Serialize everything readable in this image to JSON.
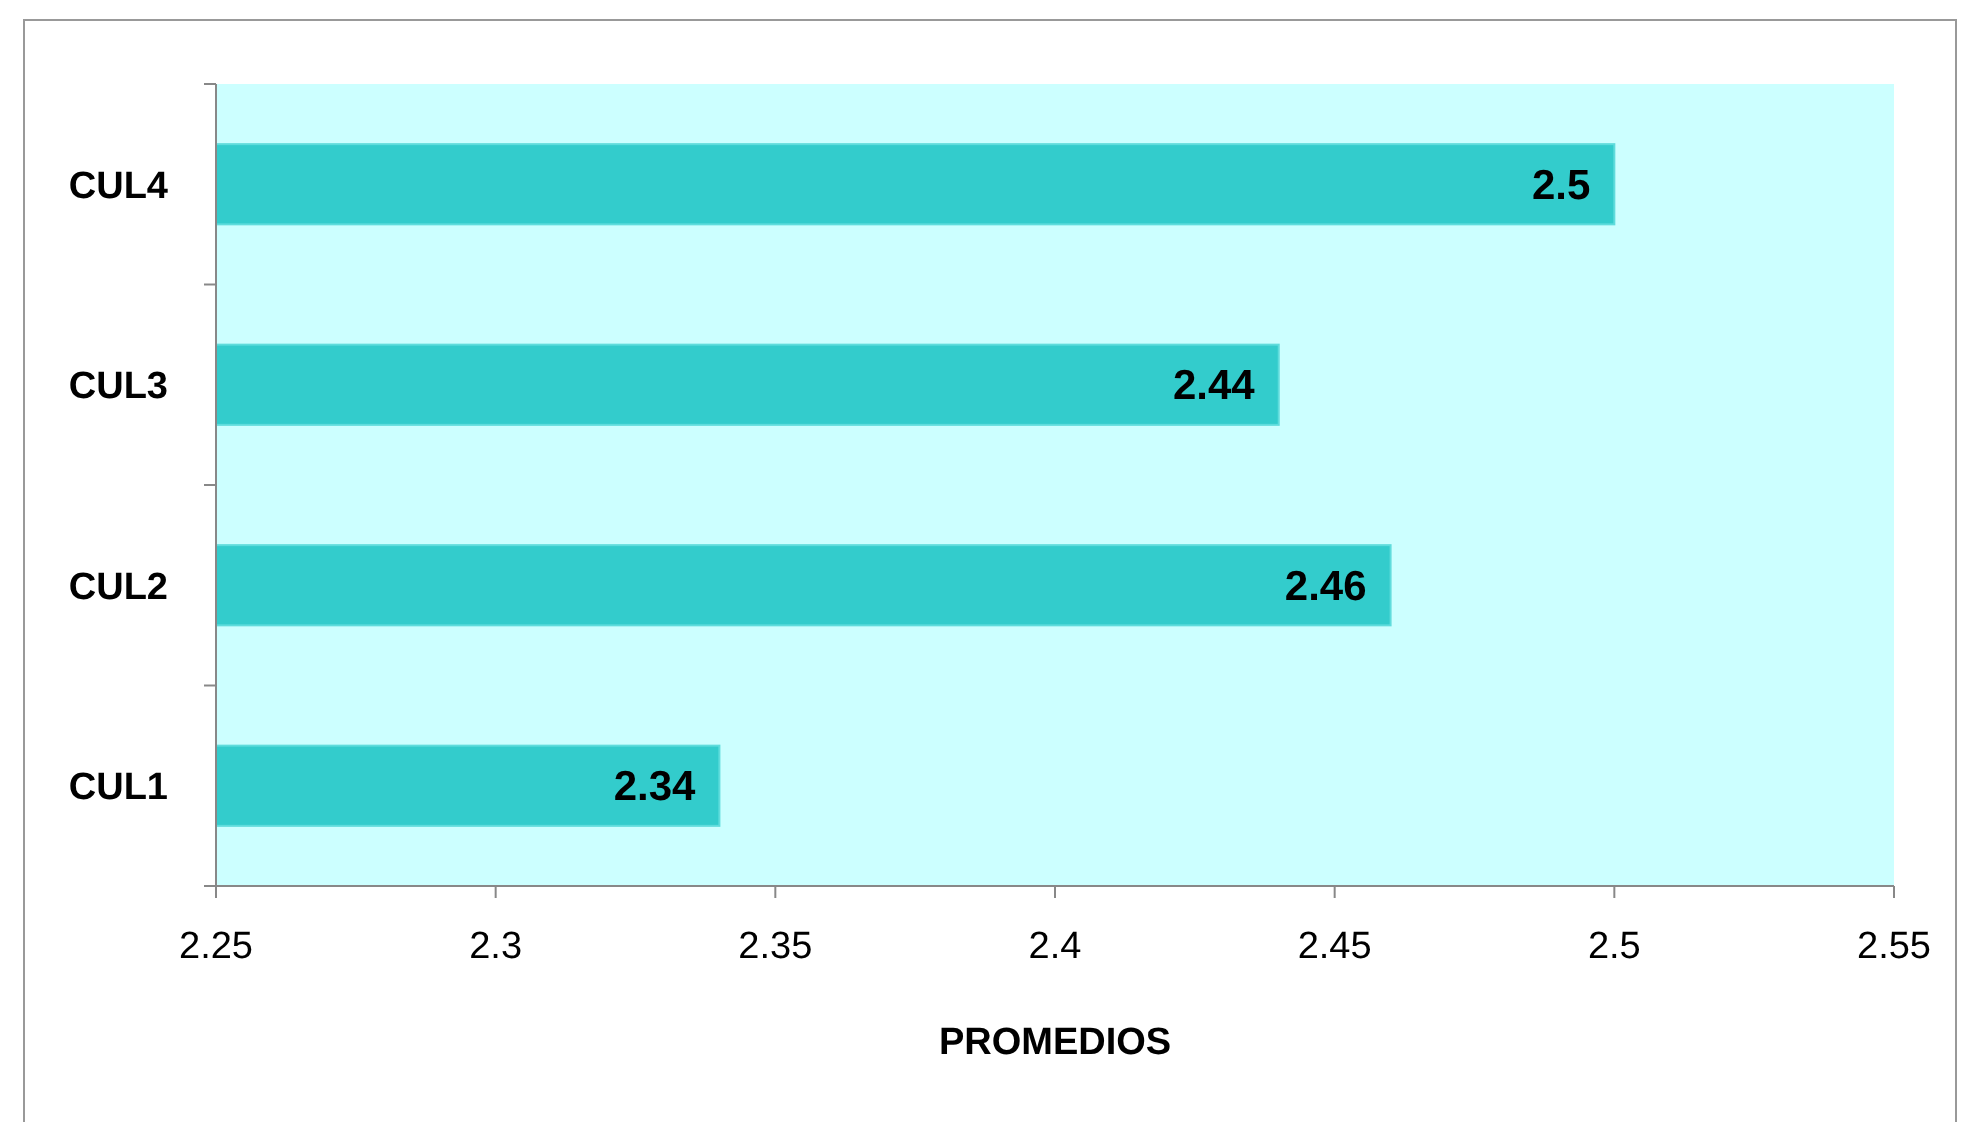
{
  "chart_data": {
    "type": "bar",
    "orientation": "horizontal",
    "xlabel": "PROMEDIOS",
    "categories": [
      "CUL4",
      "CUL3",
      "CUL2",
      "CUL1"
    ],
    "values": [
      2.5,
      2.44,
      2.46,
      2.34
    ],
    "color": "#33cccc",
    "xlim": [
      2.25,
      2.55
    ],
    "xticks": [
      2.25,
      2.3,
      2.35,
      2.4,
      2.45,
      2.5,
      2.55
    ],
    "data_labels": true
  }
}
